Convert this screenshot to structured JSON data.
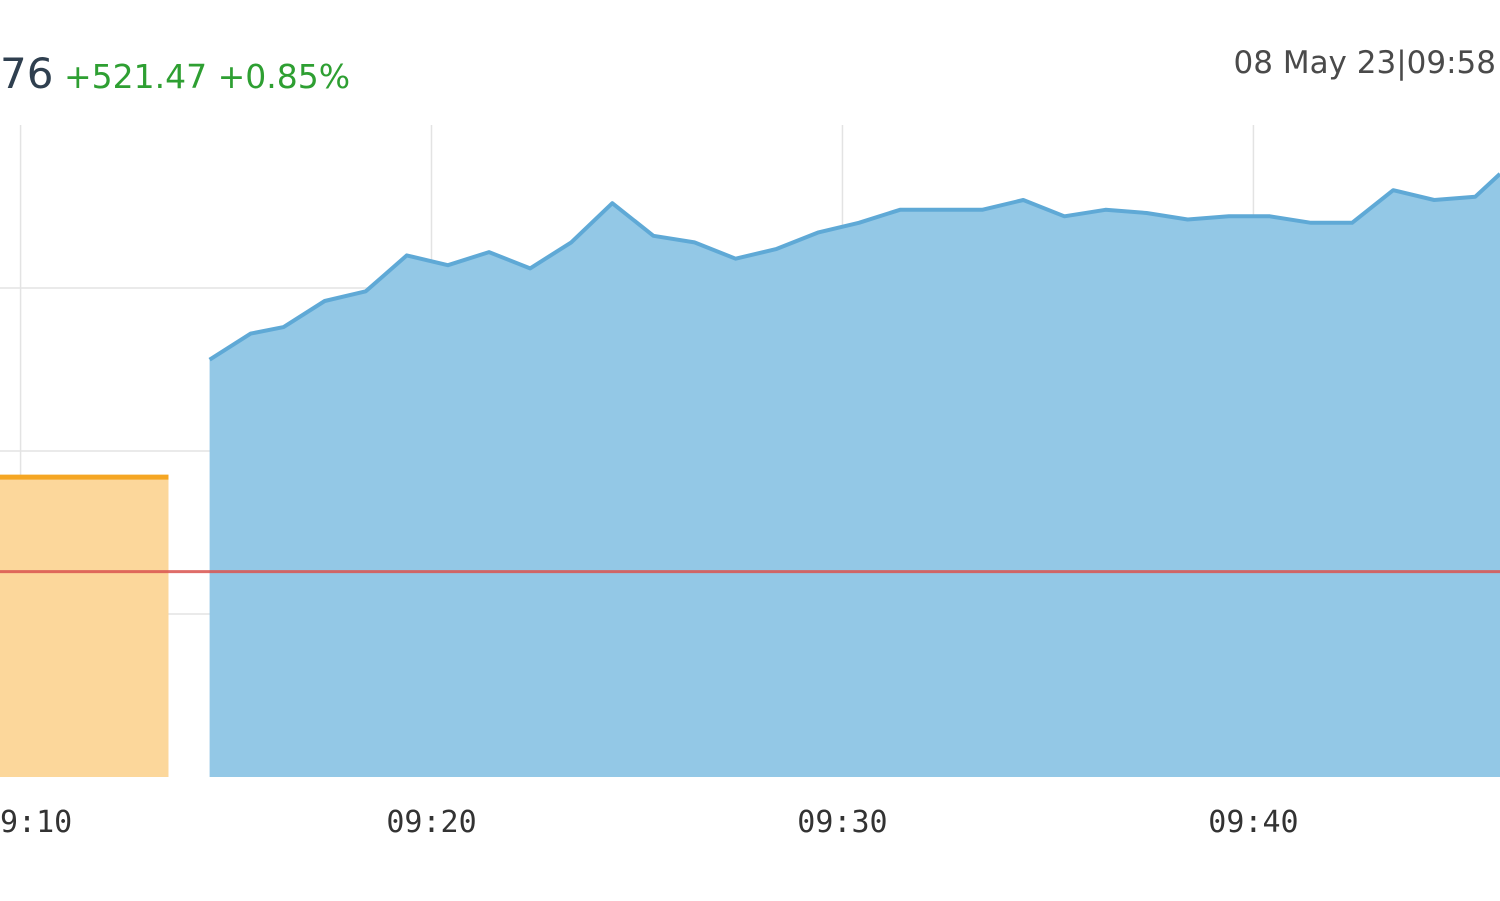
{
  "header": {
    "price": "76",
    "change": "+521.47 +0.85%",
    "timestamp": "08 May 23|09:58"
  },
  "colors": {
    "price": "#2f3f4f",
    "change": "#2e9f32",
    "area_fill": "#93c8e6",
    "area_line": "#5fa9d6",
    "preopen_fill": "#fcd79b",
    "preopen_line": "#f5a623",
    "reference_line": "#d9534f",
    "grid": "#e3e3e3"
  },
  "chart_data": {
    "type": "area",
    "xlabel": "",
    "ylabel": "",
    "x_ticks": [
      "9:10",
      "09:20",
      "09:30",
      "09:40"
    ],
    "x_tick_minutes": [
      10,
      20,
      30,
      40
    ],
    "xlim_minutes": [
      9.5,
      46
    ],
    "ylim": [
      0,
      100
    ],
    "grid": true,
    "legend": "none",
    "reference_level": 31.5,
    "preopen": {
      "start_minute": 9.5,
      "end_minute": 13.6,
      "level": 46
    },
    "series": [
      {
        "minutes": [
          14.6,
          15.6,
          16.4,
          17.4,
          18.4,
          19.4,
          20.4,
          21.4,
          22.4,
          23.4,
          24.4,
          25.4,
          26.4,
          27.4,
          28.4,
          29.4,
          30.4,
          31.4,
          32.4,
          33.4,
          34.4,
          35.4,
          36.4,
          37.4,
          38.4,
          39.4,
          40.4,
          41.4,
          42.4,
          43.4,
          44.4,
          45.4,
          46
        ],
        "values": [
          64,
          68,
          69,
          73,
          74.5,
          80,
          78.5,
          80.5,
          78,
          82,
          88,
          83,
          82,
          79.5,
          81,
          83.5,
          85,
          87,
          87,
          87,
          88.5,
          86,
          87,
          86.5,
          85.5,
          86,
          86,
          85,
          85,
          90,
          88.5,
          89,
          92.5
        ]
      }
    ]
  }
}
